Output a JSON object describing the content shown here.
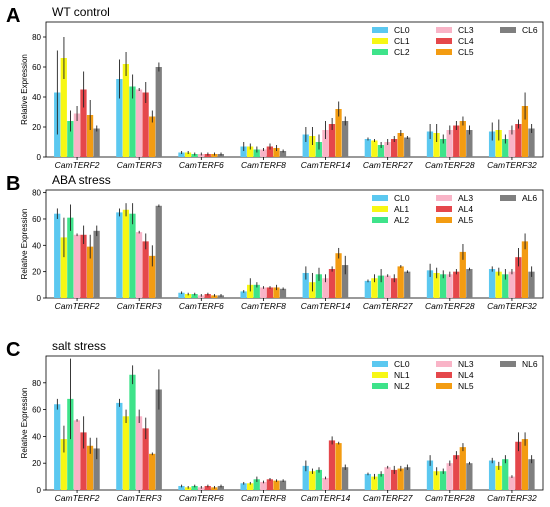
{
  "figure": {
    "title": ""
  },
  "chart_data": [
    {
      "type": "bar",
      "panel_label": "A",
      "title": "WT  control",
      "xlabel": "",
      "ylabel": "Relative Expression",
      "ylim": [
        0,
        90
      ],
      "yticks": [
        0,
        20,
        40,
        60,
        80
      ],
      "legend_position": "top-right",
      "categories": [
        "CamTERF2",
        "CamTERF3",
        "CamTERF6",
        "CamTERF8",
        "CamTERF14",
        "CamTERF27",
        "CamTERF28",
        "CamTERF32"
      ],
      "category_labels": [
        "CamTERF2",
        "CamTERF3",
        "CamTERF6",
        "CamTERF8",
        "CamTERF14",
        "CamTERF27",
        "CamTERF28",
        "CamTERF32"
      ],
      "series": [
        {
          "name": "CL0",
          "color": "#5bc8f0",
          "values": [
            43,
            52,
            3,
            7,
            15,
            12,
            17,
            17
          ],
          "errors": [
            28,
            13,
            1,
            3,
            5,
            1,
            5,
            6
          ]
        },
        {
          "name": "CL1",
          "color": "#f7f714",
          "values": [
            66,
            62,
            3,
            7,
            14,
            11,
            16,
            18
          ],
          "errors": [
            14,
            8,
            1,
            2,
            6,
            1,
            6,
            7
          ]
        },
        {
          "name": "CL2",
          "color": "#3ee38a",
          "values": [
            24,
            47,
            2,
            5,
            10,
            8,
            12,
            12
          ],
          "errors": [
            7,
            8,
            1,
            2,
            5,
            2,
            3,
            3
          ]
        },
        {
          "name": "CL3",
          "color": "#f9b4c7",
          "values": [
            29,
            45,
            2,
            5,
            18,
            10,
            18,
            18
          ],
          "errors": [
            5,
            1,
            1,
            1,
            6,
            2,
            3,
            3
          ]
        },
        {
          "name": "CL4",
          "color": "#e5474b",
          "values": [
            45,
            43,
            2,
            7,
            22,
            12,
            21,
            22
          ],
          "errors": [
            12,
            7,
            1,
            2,
            4,
            2,
            3,
            3
          ]
        },
        {
          "name": "CL5",
          "color": "#f39c12",
          "values": [
            28,
            27,
            2,
            6,
            32,
            16,
            24,
            34
          ],
          "errors": [
            10,
            4,
            1,
            2,
            5,
            2,
            3,
            9
          ]
        },
        {
          "name": "CL6",
          "color": "#7f7f7f",
          "values": [
            19,
            60,
            2,
            4,
            24,
            13,
            18,
            19
          ],
          "errors": [
            2,
            3,
            1,
            1,
            3,
            1,
            3,
            3
          ]
        }
      ]
    },
    {
      "type": "bar",
      "panel_label": "B",
      "title": "ABA  stress",
      "xlabel": "",
      "ylabel": "Relative Expression",
      "ylim": [
        0,
        82
      ],
      "yticks": [
        0,
        20,
        40,
        60,
        80
      ],
      "legend_position": "top-right",
      "categories": [
        "CamTERF2",
        "CamTERF3",
        "CamTERF6",
        "CamTERF8",
        "CamTERF14",
        "CamTERF27",
        "CamTERF28",
        "CamTERF32"
      ],
      "category_labels": [
        "CamTERF2",
        "CamTERF3",
        "CamTERF6",
        "CamTERF8",
        "CamTERF14",
        "CamTERF27",
        "CamTERF28",
        "CamTERF32"
      ],
      "series": [
        {
          "name": "CL0",
          "color": "#5bc8f0",
          "values": [
            64,
            65,
            4,
            5,
            19,
            13,
            21,
            22
          ],
          "errors": [
            4,
            3,
            1,
            1,
            5,
            1,
            5,
            2
          ]
        },
        {
          "name": "AL1",
          "color": "#f7f714",
          "values": [
            46,
            67,
            3,
            10,
            12,
            15,
            19,
            20
          ],
          "errors": [
            15,
            5,
            1,
            5,
            7,
            3,
            4,
            3
          ]
        },
        {
          "name": "AL2",
          "color": "#3ee38a",
          "values": [
            61,
            64,
            3,
            10,
            18,
            17,
            18,
            18
          ],
          "errors": [
            10,
            8,
            1,
            2,
            5,
            5,
            3,
            4
          ]
        },
        {
          "name": "AL3",
          "color": "#f9b4c7",
          "values": [
            48,
            50,
            2,
            8,
            15,
            17,
            18,
            20
          ],
          "errors": [
            1,
            1,
            1,
            1,
            3,
            1,
            2,
            2
          ]
        },
        {
          "name": "AL4",
          "color": "#e5474b",
          "values": [
            48,
            43,
            3,
            8,
            22,
            15,
            20,
            31
          ],
          "errors": [
            7,
            6,
            1,
            1,
            2,
            3,
            2,
            7
          ]
        },
        {
          "name": "AL5",
          "color": "#f39c12",
          "values": [
            39,
            32,
            2,
            8,
            34,
            24,
            35,
            43
          ],
          "errors": [
            9,
            8,
            1,
            2,
            4,
            1,
            6,
            6
          ]
        },
        {
          "name": "AL6",
          "color": "#7f7f7f",
          "values": [
            51,
            70,
            2,
            7,
            25,
            20,
            22,
            20
          ],
          "errors": [
            4,
            1,
            1,
            1,
            7,
            1,
            1,
            4
          ]
        }
      ]
    },
    {
      "type": "bar",
      "panel_label": "C",
      "title": "salt  stress",
      "xlabel": "",
      "ylabel": "Relative Expression",
      "ylim": [
        0,
        100
      ],
      "yticks": [
        0,
        20,
        40,
        60,
        80
      ],
      "legend_position": "top-right",
      "categories": [
        "CamTERF2",
        "CamTERF3",
        "CamTERF6",
        "CamTERF8",
        "CamTERF14",
        "CamTERF27",
        "CamTERF28",
        "CamTERF32"
      ],
      "category_labels": [
        "CamTERF2",
        "CamTERF3",
        "CamTERF6",
        "CamTERF8",
        "CamTERF14",
        "CamTERF27",
        "CamTERF28",
        "CamTERF32"
      ],
      "series": [
        {
          "name": "CL0",
          "color": "#5bc8f0",
          "values": [
            64,
            65,
            3,
            5,
            18,
            12,
            22,
            22
          ],
          "errors": [
            4,
            3,
            1,
            1,
            4,
            1,
            4,
            2
          ]
        },
        {
          "name": "NL1",
          "color": "#f7f714",
          "values": [
            38,
            55,
            2,
            5,
            14,
            10,
            14,
            18
          ],
          "errors": [
            10,
            5,
            1,
            1,
            2,
            2,
            3,
            3
          ]
        },
        {
          "name": "NL2",
          "color": "#3ee38a",
          "values": [
            68,
            86,
            3,
            8,
            15,
            12,
            14,
            23
          ],
          "errors": [
            30,
            7,
            1,
            2,
            2,
            2,
            2,
            3
          ]
        },
        {
          "name": "NL3",
          "color": "#f9b4c7",
          "values": [
            52,
            55,
            2,
            6,
            9,
            17,
            20,
            10
          ],
          "errors": [
            1,
            5,
            1,
            1,
            1,
            1,
            2,
            1
          ]
        },
        {
          "name": "NL4",
          "color": "#e5474b",
          "values": [
            43,
            46,
            3,
            8,
            37,
            15,
            26,
            36
          ],
          "errors": [
            12,
            8,
            1,
            1,
            3,
            3,
            3,
            7
          ]
        },
        {
          "name": "NL5",
          "color": "#f39c12",
          "values": [
            33,
            27,
            2,
            7,
            35,
            16,
            32,
            38
          ],
          "errors": [
            6,
            1,
            1,
            1,
            1,
            2,
            3,
            5
          ]
        },
        {
          "name": "NL6",
          "color": "#7f7f7f",
          "values": [
            31,
            75,
            3,
            7,
            17,
            17,
            20,
            23
          ],
          "errors": [
            8,
            15,
            1,
            1,
            2,
            2,
            1,
            3
          ]
        }
      ]
    }
  ]
}
